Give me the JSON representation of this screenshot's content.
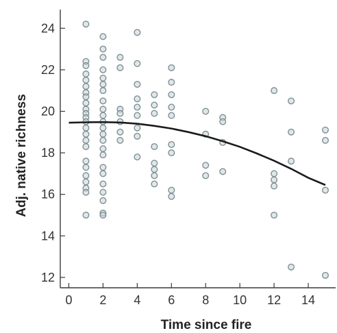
{
  "chart_data": {
    "type": "scatter",
    "title": "",
    "xlabel": "Time since fire",
    "ylabel": "Adj. native richness",
    "xlim": [
      -0.5,
      15.6
    ],
    "ylim": [
      11.5,
      24.9
    ],
    "xticks": [
      0,
      2,
      4,
      6,
      8,
      10,
      12,
      14
    ],
    "xtick_labels": [
      "0",
      "2",
      "4",
      "6",
      "8",
      "10",
      "12",
      "14"
    ],
    "yticks": [
      12,
      14,
      16,
      18,
      20,
      22,
      24
    ],
    "ytick_labels": [
      "12",
      "14",
      "16",
      "18",
      "20",
      "22",
      "24"
    ],
    "grid": false,
    "legend": "none",
    "points": [
      {
        "x": 1,
        "y": 24.2
      },
      {
        "x": 1,
        "y": 22.4
      },
      {
        "x": 1,
        "y": 22.2
      },
      {
        "x": 1,
        "y": 21.8
      },
      {
        "x": 1,
        "y": 21.5
      },
      {
        "x": 1,
        "y": 21.2
      },
      {
        "x": 1,
        "y": 20.9
      },
      {
        "x": 1,
        "y": 20.7
      },
      {
        "x": 1,
        "y": 20.4
      },
      {
        "x": 1,
        "y": 20.1
      },
      {
        "x": 1,
        "y": 19.9
      },
      {
        "x": 1,
        "y": 19.7
      },
      {
        "x": 1,
        "y": 19.5
      },
      {
        "x": 1,
        "y": 19.2
      },
      {
        "x": 1,
        "y": 18.9
      },
      {
        "x": 1,
        "y": 18.6
      },
      {
        "x": 1,
        "y": 18.3
      },
      {
        "x": 1,
        "y": 17.6
      },
      {
        "x": 1,
        "y": 17.3
      },
      {
        "x": 1,
        "y": 16.9
      },
      {
        "x": 1,
        "y": 16.6
      },
      {
        "x": 1,
        "y": 16.3
      },
      {
        "x": 1,
        "y": 16.1
      },
      {
        "x": 1,
        "y": 15.0
      },
      {
        "x": 2,
        "y": 23.6
      },
      {
        "x": 2,
        "y": 23.0
      },
      {
        "x": 2,
        "y": 22.6
      },
      {
        "x": 2,
        "y": 22.0
      },
      {
        "x": 2,
        "y": 21.6
      },
      {
        "x": 2,
        "y": 21.3
      },
      {
        "x": 2,
        "y": 21.0
      },
      {
        "x": 2,
        "y": 20.5
      },
      {
        "x": 2,
        "y": 20.1
      },
      {
        "x": 2,
        "y": 19.8
      },
      {
        "x": 2,
        "y": 19.5
      },
      {
        "x": 2,
        "y": 19.2
      },
      {
        "x": 2,
        "y": 18.9
      },
      {
        "x": 2,
        "y": 18.6
      },
      {
        "x": 2,
        "y": 18.2
      },
      {
        "x": 2,
        "y": 17.9
      },
      {
        "x": 2,
        "y": 17.3
      },
      {
        "x": 2,
        "y": 17.0
      },
      {
        "x": 2,
        "y": 16.5
      },
      {
        "x": 2,
        "y": 16.1
      },
      {
        "x": 2,
        "y": 15.7
      },
      {
        "x": 2,
        "y": 15.1
      },
      {
        "x": 2,
        "y": 15.0
      },
      {
        "x": 3,
        "y": 22.6
      },
      {
        "x": 3,
        "y": 22.1
      },
      {
        "x": 3,
        "y": 20.1
      },
      {
        "x": 3,
        "y": 19.9
      },
      {
        "x": 3,
        "y": 19.5
      },
      {
        "x": 3,
        "y": 19.0
      },
      {
        "x": 3,
        "y": 18.6
      },
      {
        "x": 4,
        "y": 23.8
      },
      {
        "x": 4,
        "y": 22.3
      },
      {
        "x": 4,
        "y": 21.3
      },
      {
        "x": 4,
        "y": 20.6
      },
      {
        "x": 4,
        "y": 20.2
      },
      {
        "x": 4,
        "y": 19.8
      },
      {
        "x": 4,
        "y": 19.2
      },
      {
        "x": 4,
        "y": 18.8
      },
      {
        "x": 4,
        "y": 17.8
      },
      {
        "x": 5,
        "y": 20.8
      },
      {
        "x": 5,
        "y": 20.3
      },
      {
        "x": 5,
        "y": 19.9
      },
      {
        "x": 5,
        "y": 18.3
      },
      {
        "x": 5,
        "y": 17.5
      },
      {
        "x": 5,
        "y": 17.2
      },
      {
        "x": 5,
        "y": 16.9
      },
      {
        "x": 5,
        "y": 16.5
      },
      {
        "x": 6,
        "y": 22.1
      },
      {
        "x": 6,
        "y": 21.4
      },
      {
        "x": 6,
        "y": 20.8
      },
      {
        "x": 6,
        "y": 20.2
      },
      {
        "x": 6,
        "y": 19.8
      },
      {
        "x": 6,
        "y": 18.4
      },
      {
        "x": 6,
        "y": 18.0
      },
      {
        "x": 6,
        "y": 16.2
      },
      {
        "x": 6,
        "y": 15.9
      },
      {
        "x": 8,
        "y": 20.0
      },
      {
        "x": 8,
        "y": 18.9
      },
      {
        "x": 8,
        "y": 17.4
      },
      {
        "x": 8,
        "y": 16.9
      },
      {
        "x": 9,
        "y": 19.7
      },
      {
        "x": 9,
        "y": 19.5
      },
      {
        "x": 9,
        "y": 18.5
      },
      {
        "x": 9,
        "y": 17.1
      },
      {
        "x": 12,
        "y": 21.0
      },
      {
        "x": 12,
        "y": 17.0
      },
      {
        "x": 12,
        "y": 16.7
      },
      {
        "x": 12,
        "y": 16.4
      },
      {
        "x": 12,
        "y": 15.0
      },
      {
        "x": 13,
        "y": 20.5
      },
      {
        "x": 13,
        "y": 19.0
      },
      {
        "x": 13,
        "y": 17.6
      },
      {
        "x": 13,
        "y": 12.5
      },
      {
        "x": 15,
        "y": 19.1
      },
      {
        "x": 15,
        "y": 18.6
      },
      {
        "x": 15,
        "y": 16.2
      },
      {
        "x": 15,
        "y": 12.1
      }
    ],
    "fit_line": {
      "type": "quadratic",
      "x": [
        0,
        1,
        2,
        3,
        4,
        5,
        6,
        7,
        8,
        9,
        10,
        11,
        12,
        13,
        14,
        15
      ],
      "y": [
        19.45,
        19.47,
        19.48,
        19.46,
        19.4,
        19.3,
        19.17,
        19.0,
        18.8,
        18.56,
        18.29,
        17.97,
        17.62,
        17.23,
        16.8,
        16.45
      ]
    },
    "colors": {
      "marker_edge": "#7d8f95",
      "marker_fill": "#c9d3d6",
      "fit_line": "#1b1b1b",
      "axis": "#3a3a3a"
    }
  }
}
